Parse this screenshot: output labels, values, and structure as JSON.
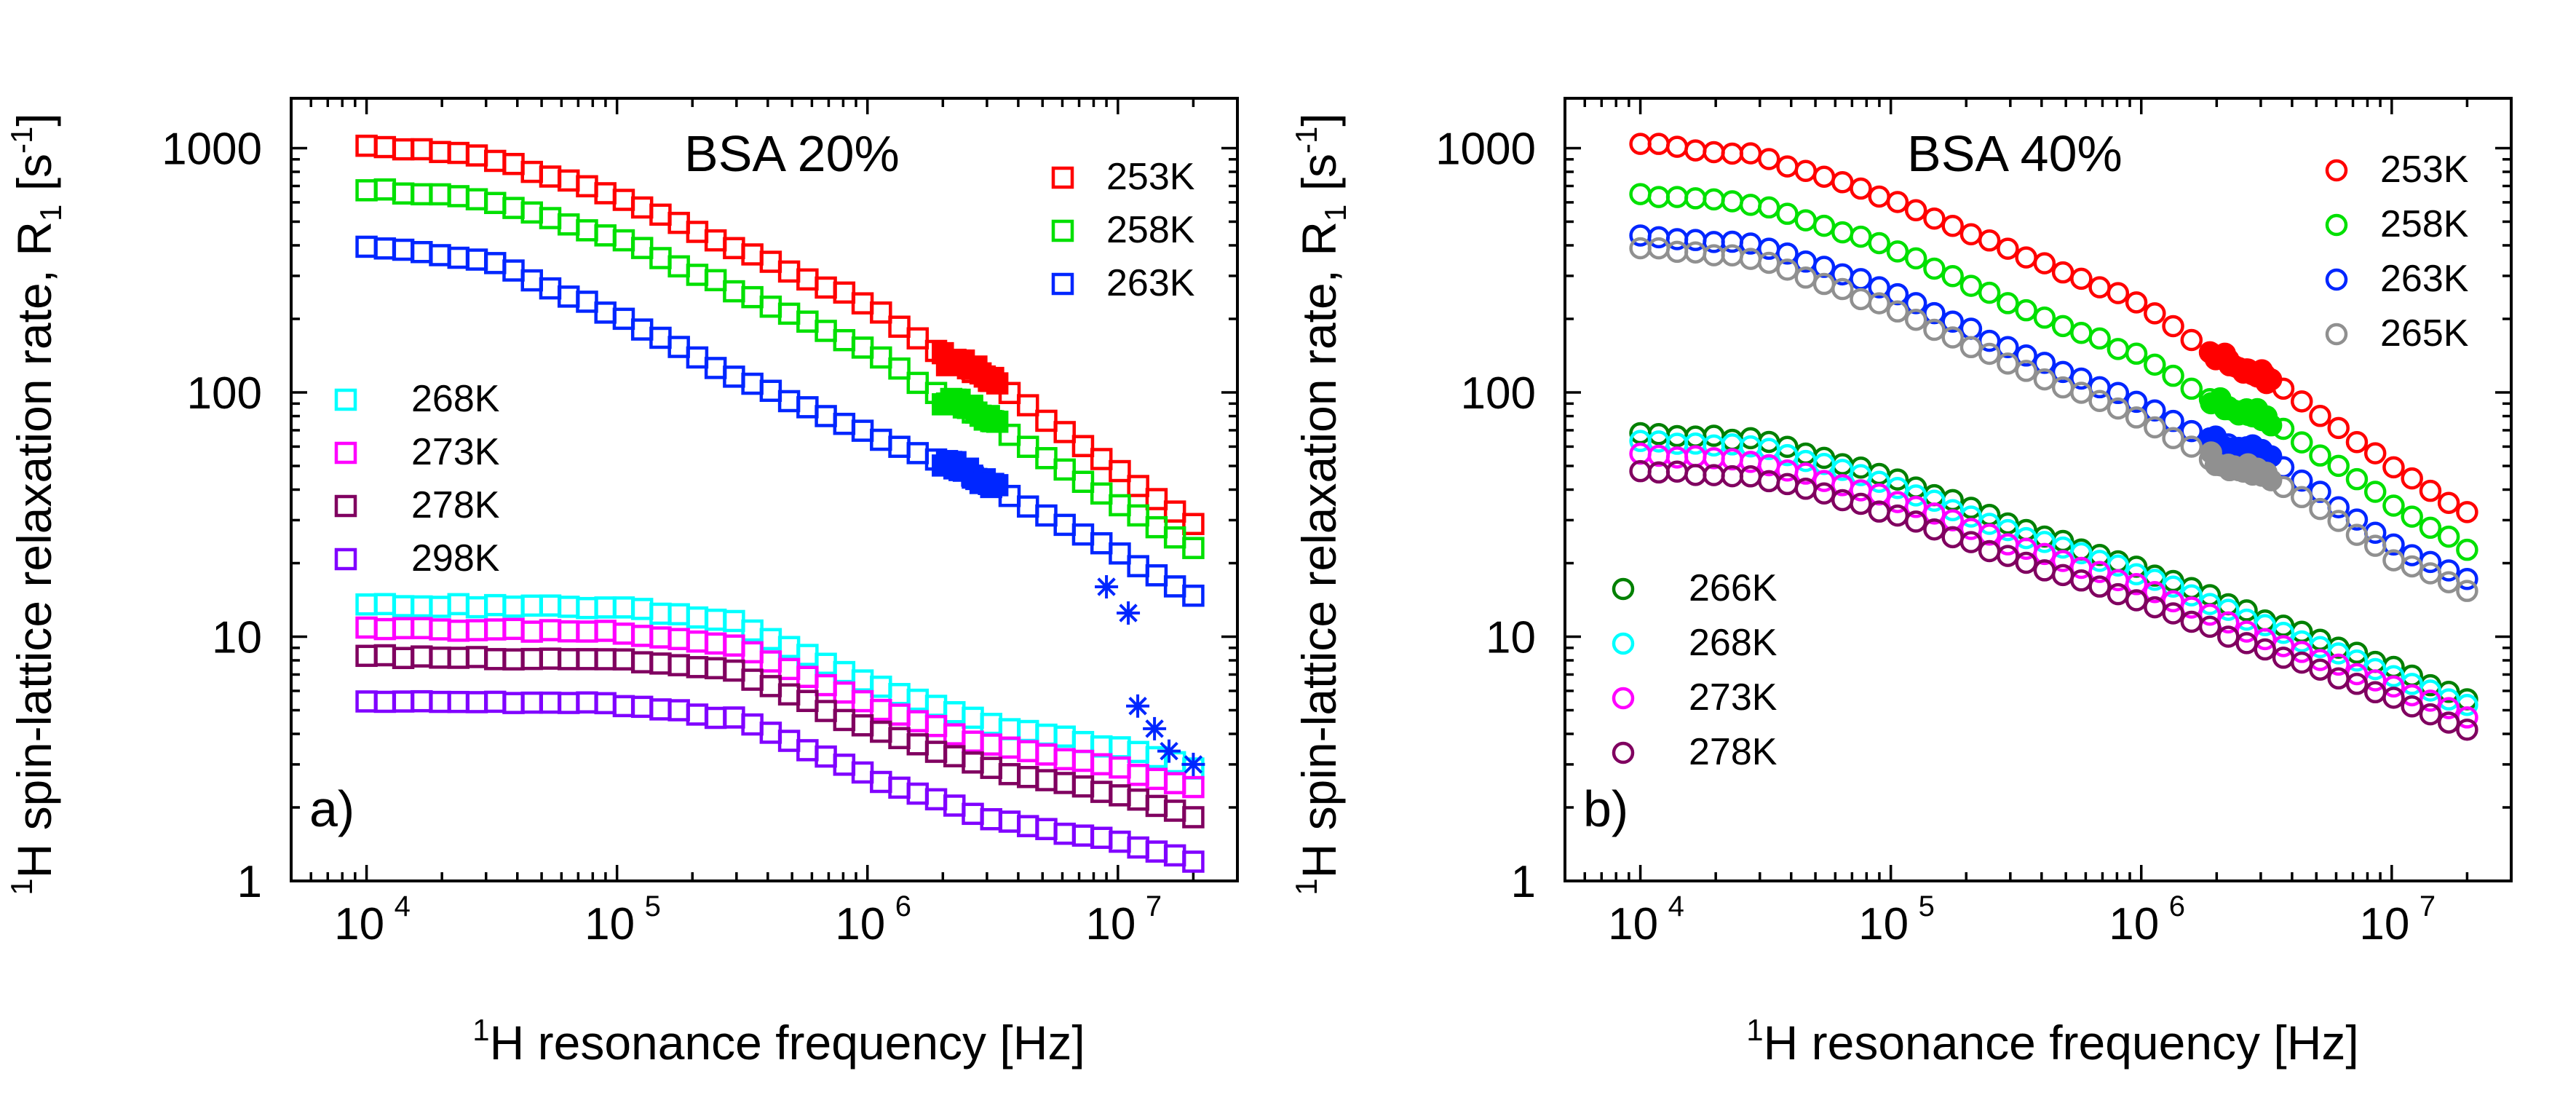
{
  "chart_data": [
    {
      "panel": "a)",
      "type": "scatter",
      "title": "BSA 20%",
      "xlabel": "resonance frequency [Hz]",
      "xlabel_superscript": "1",
      "xlabel_prefix": "H",
      "ylabel": "spin-lattice relaxation rate, R",
      "ylabel_superscript": "1",
      "ylabel_prefix": "H",
      "ylabel_subscript": "1",
      "ylabel_unit": "[s",
      "ylabel_unit_sup": "-1",
      "ylabel_unit_close": "]",
      "xscale": "log",
      "yscale": "log",
      "xlim": [
        5000,
        30000000
      ],
      "ylim": [
        1,
        1600
      ],
      "xticks": [
        {
          "value": 10000,
          "base": "10",
          "exp": "4"
        },
        {
          "value": 100000,
          "base": "10",
          "exp": "5"
        },
        {
          "value": 1000000,
          "base": "10",
          "exp": "6"
        },
        {
          "value": 10000000,
          "base": "10",
          "exp": "7"
        }
      ],
      "yticks": [
        {
          "value": 1,
          "label": "1"
        },
        {
          "value": 10,
          "label": "10"
        },
        {
          "value": 100,
          "label": "100"
        },
        {
          "value": 1000,
          "label": "1000"
        }
      ],
      "marker": "square",
      "legend_upper": [
        "253K",
        "258K",
        "263K"
      ],
      "legend_lower": [
        "268K",
        "273K",
        "278K",
        "298K"
      ],
      "series": [
        {
          "name": "253K",
          "color": "#ff0000",
          "points": [
            [
              10000,
              1030
            ],
            [
              30000,
              920
            ],
            [
              100000,
              640
            ],
            [
              300000,
              390
            ],
            [
              1000000,
              230
            ],
            [
              2000000,
              140
            ],
            [
              3000000,
              115
            ],
            [
              10000000,
              48
            ],
            [
              20000000,
              29
            ]
          ]
        },
        {
          "name": "258K",
          "color": "#00e000",
          "points": [
            [
              10000,
              680
            ],
            [
              30000,
              620
            ],
            [
              100000,
              430
            ],
            [
              300000,
              260
            ],
            [
              1000000,
              150
            ],
            [
              2000000,
              95
            ],
            [
              3000000,
              78
            ],
            [
              10000000,
              35
            ],
            [
              20000000,
              23
            ]
          ]
        },
        {
          "name": "263K",
          "color": "#0026ff",
          "points": [
            [
              10000,
              400
            ],
            [
              30000,
              350
            ],
            [
              100000,
              205
            ],
            [
              300000,
              115
            ],
            [
              1000000,
              68
            ],
            [
              2000000,
              52
            ],
            [
              3000000,
              42
            ],
            [
              10000000,
              22
            ],
            [
              20000000,
              14.5
            ]
          ]
        },
        {
          "name": "268K",
          "color": "#00ffff",
          "points": [
            [
              10000,
              13.5
            ],
            [
              100000,
              13.2
            ],
            [
              300000,
              11.5
            ],
            [
              1000000,
              6.5
            ],
            [
              3000000,
              4.4
            ],
            [
              10000000,
              3.5
            ],
            [
              20000000,
              2.9
            ]
          ]
        },
        {
          "name": "273K",
          "color": "#ff00ff",
          "points": [
            [
              10000,
              10.8
            ],
            [
              100000,
              10.5
            ],
            [
              300000,
              9.2
            ],
            [
              1000000,
              5.3
            ],
            [
              3000000,
              3.6
            ],
            [
              10000000,
              2.9
            ],
            [
              20000000,
              2.4
            ]
          ]
        },
        {
          "name": "278K",
          "color": "#800060",
          "points": [
            [
              10000,
              8.3
            ],
            [
              100000,
              8.1
            ],
            [
              300000,
              7.2
            ],
            [
              1000000,
              4.2
            ],
            [
              3000000,
              2.9
            ],
            [
              10000000,
              2.25
            ],
            [
              20000000,
              1.85
            ]
          ]
        },
        {
          "name": "298K",
          "color": "#8000ff",
          "points": [
            [
              10000,
              5.5
            ],
            [
              100000,
              5.3
            ],
            [
              300000,
              4.6
            ],
            [
              1000000,
              2.7
            ],
            [
              3000000,
              1.8
            ],
            [
              10000000,
              1.45
            ],
            [
              20000000,
              1.2
            ]
          ]
        }
      ],
      "cluster": {
        "color": "#ff0000",
        "fmin": 2000000,
        "fmax": 3300000,
        "mult_253": [
          1.0
        ],
        "note": "filled markers at 2-3.3 MHz"
      },
      "stars": {
        "color": "#0026ff",
        "points": [
          [
            9000000,
            16
          ],
          [
            11000000,
            12.5
          ],
          [
            12000000,
            5.2
          ],
          [
            14000000,
            4.2
          ],
          [
            16000000,
            3.4
          ],
          [
            20000000,
            3.0
          ]
        ]
      }
    },
    {
      "panel": "b)",
      "type": "scatter",
      "title": "BSA 40%",
      "xlabel": "resonance frequency [Hz]",
      "xlabel_superscript": "1",
      "xlabel_prefix": "H",
      "ylabel": "spin-lattice relaxation rate, R",
      "ylabel_superscript": "1",
      "ylabel_prefix": "H",
      "ylabel_subscript": "1",
      "ylabel_unit": "[s",
      "ylabel_unit_sup": "-1",
      "ylabel_unit_close": "]",
      "xscale": "log",
      "yscale": "log",
      "xlim": [
        5000,
        30000000
      ],
      "ylim": [
        1,
        1600
      ],
      "xticks": [
        {
          "value": 10000,
          "base": "10",
          "exp": "4"
        },
        {
          "value": 100000,
          "base": "10",
          "exp": "5"
        },
        {
          "value": 1000000,
          "base": "10",
          "exp": "6"
        },
        {
          "value": 10000000,
          "base": "10",
          "exp": "7"
        }
      ],
      "yticks": [
        {
          "value": 1,
          "label": "1"
        },
        {
          "value": 10,
          "label": "10"
        },
        {
          "value": 100,
          "label": "100"
        },
        {
          "value": 1000,
          "label": "1000"
        }
      ],
      "marker": "circle",
      "legend_upper": [
        "253K",
        "258K",
        "263K",
        "265K"
      ],
      "legend_lower": [
        "266K",
        "268K",
        "273K",
        "278K"
      ],
      "series": [
        {
          "name": "253K",
          "color": "#ff0000",
          "points": [
            [
              10000,
              1050
            ],
            [
              30000,
              930
            ],
            [
              100000,
              620
            ],
            [
              300000,
              380
            ],
            [
              1000000,
              230
            ],
            [
              2000000,
              140
            ],
            [
              3000000,
              120
            ],
            [
              10000000,
              50
            ],
            [
              20000000,
              32
            ]
          ]
        },
        {
          "name": "258K",
          "color": "#00e000",
          "points": [
            [
              10000,
              650
            ],
            [
              30000,
              590
            ],
            [
              100000,
              390
            ],
            [
              300000,
              230
            ],
            [
              1000000,
              140
            ],
            [
              2000000,
              90
            ],
            [
              3000000,
              82
            ],
            [
              10000000,
              35
            ],
            [
              20000000,
              23
            ]
          ]
        },
        {
          "name": "263K",
          "color": "#0026ff",
          "points": [
            [
              10000,
              440
            ],
            [
              30000,
              400
            ],
            [
              100000,
              260
            ],
            [
              300000,
              150
            ],
            [
              1000000,
              90
            ],
            [
              2000000,
              62
            ],
            [
              3000000,
              58
            ],
            [
              10000000,
              24
            ],
            [
              20000000,
              17
            ]
          ]
        },
        {
          "name": "265K",
          "color": "#909090",
          "points": [
            [
              10000,
              390
            ],
            [
              30000,
              350
            ],
            [
              100000,
              220
            ],
            [
              300000,
              130
            ],
            [
              1000000,
              78
            ],
            [
              2000000,
              52
            ],
            [
              3000000,
              48
            ],
            [
              10000000,
              21
            ],
            [
              20000000,
              15.5
            ]
          ]
        },
        {
          "name": "266K",
          "color": "#008000",
          "points": [
            [
              10000,
              68
            ],
            [
              30000,
              64
            ],
            [
              100000,
              45
            ],
            [
              300000,
              29
            ],
            [
              1000000,
              19
            ],
            [
              3000000,
              12
            ],
            [
              10000000,
              7.5
            ],
            [
              20000000,
              5.5
            ]
          ]
        },
        {
          "name": "268K",
          "color": "#00ffff",
          "points": [
            [
              10000,
              63
            ],
            [
              30000,
              60
            ],
            [
              100000,
              42
            ],
            [
              300000,
              27
            ],
            [
              1000000,
              18
            ],
            [
              3000000,
              11.2
            ],
            [
              10000000,
              7
            ],
            [
              20000000,
              5.2
            ]
          ]
        },
        {
          "name": "273K",
          "color": "#ff00ff",
          "points": [
            [
              10000,
              56
            ],
            [
              30000,
              52
            ],
            [
              100000,
              37
            ],
            [
              300000,
              24
            ],
            [
              1000000,
              16
            ],
            [
              3000000,
              10
            ],
            [
              10000000,
              6.3
            ],
            [
              20000000,
              4.7
            ]
          ]
        },
        {
          "name": "278K",
          "color": "#800060",
          "points": [
            [
              10000,
              48
            ],
            [
              30000,
              45
            ],
            [
              100000,
              32
            ],
            [
              300000,
              21
            ],
            [
              1000000,
              14
            ],
            [
              3000000,
              9
            ],
            [
              10000000,
              5.6
            ],
            [
              20000000,
              4.2
            ]
          ]
        }
      ],
      "cluster": {
        "color": "#ff0000",
        "fmin": 1900000,
        "fmax": 3300000,
        "note": "filled markers at 2-3.3 MHz"
      }
    }
  ]
}
